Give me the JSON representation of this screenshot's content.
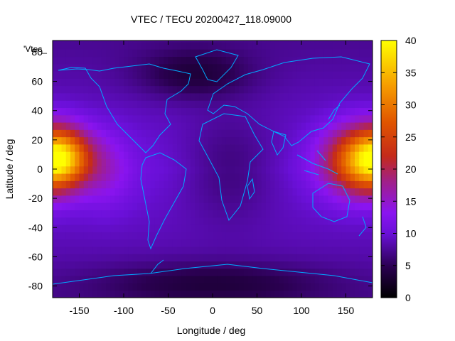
{
  "chart_data": {
    "type": "heatmap",
    "title": "VTEC / TECU 20200427_118.09000",
    "xlabel": "Longitude / deg",
    "ylabel": "Latitude / deg",
    "xlim": [
      -180,
      180
    ],
    "ylim": [
      -88,
      88
    ],
    "x_ticks": [
      -150,
      -100,
      -50,
      0,
      50,
      100,
      150
    ],
    "y_ticks": [
      60,
      40,
      20,
      0,
      -20,
      -40,
      -60,
      -80
    ],
    "y_ticks_top_partial": "80",
    "colorbar": {
      "range": [
        0,
        40
      ],
      "ticks": [
        0,
        5,
        10,
        15,
        20,
        25,
        30,
        35,
        40
      ],
      "palette": "black-purple-red-orange-yellow"
    },
    "legend_label": "'Vtec_",
    "overlay": "coastlines",
    "overlay_color": "#00aaff",
    "grid": false,
    "notes_visible": {
      "hotspot_west": "~30 TECU near lon -165, lat 10",
      "hotspot_east": "~30 TECU near lon 150, lat 0",
      "background": "~8-12 TECU"
    }
  }
}
